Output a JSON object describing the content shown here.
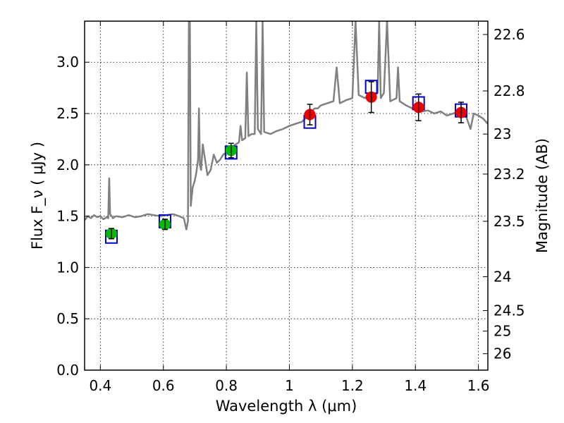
{
  "chart_data": {
    "type": "scatter",
    "xlabel": "Wavelength  λ (μm)",
    "ylabel": "Flux  F_ν  ( μJy )",
    "y2label": "Magnitude (AB)",
    "xlim": [
      0.35,
      1.63
    ],
    "ylim": [
      0.0,
      3.4
    ],
    "grid": true,
    "x_ticks": [
      {
        "value": 0.4,
        "label": "0.4"
      },
      {
        "value": 0.6,
        "label": "0.6"
      },
      {
        "value": 0.8,
        "label": "0.8"
      },
      {
        "value": 1.0,
        "label": "1"
      },
      {
        "value": 1.2,
        "label": "1.2"
      },
      {
        "value": 1.4,
        "label": "1.4"
      },
      {
        "value": 1.6,
        "label": "1.6"
      }
    ],
    "y_ticks": [
      {
        "value": 0.0,
        "label": "0.0"
      },
      {
        "value": 0.5,
        "label": "0.5"
      },
      {
        "value": 1.0,
        "label": "1.0"
      },
      {
        "value": 1.5,
        "label": "1.5"
      },
      {
        "value": 2.0,
        "label": "2.0"
      },
      {
        "value": 2.5,
        "label": "2.5"
      },
      {
        "value": 3.0,
        "label": "3.0"
      }
    ],
    "y2_ticks": [
      {
        "flux": 3.27,
        "label": "22.6"
      },
      {
        "flux": 2.72,
        "label": "22.8"
      },
      {
        "flux": 2.3,
        "label": "23"
      },
      {
        "flux": 1.91,
        "label": "23.2"
      },
      {
        "flux": 1.45,
        "label": "23.5"
      },
      {
        "flux": 0.91,
        "label": "24"
      },
      {
        "flux": 0.58,
        "label": "24.5"
      },
      {
        "flux": 0.38,
        "label": "25"
      },
      {
        "flux": 0.16,
        "label": "26"
      }
    ],
    "colors": {
      "spectrum": "#808080",
      "model_box": "#0000cc",
      "optical_point": "#00bb00",
      "nir_point": "#ee0000",
      "errorbar": "#000000"
    },
    "spectrum": [
      [
        0.35,
        1.46
      ],
      [
        0.36,
        1.5
      ],
      [
        0.37,
        1.48
      ],
      [
        0.38,
        1.51
      ],
      [
        0.39,
        1.49
      ],
      [
        0.4,
        1.5
      ],
      [
        0.41,
        1.47
      ],
      [
        0.42,
        1.49
      ],
      [
        0.425,
        1.48
      ],
      [
        0.428,
        1.87
      ],
      [
        0.431,
        1.52
      ],
      [
        0.44,
        1.48
      ],
      [
        0.45,
        1.5
      ],
      [
        0.47,
        1.49
      ],
      [
        0.49,
        1.51
      ],
      [
        0.51,
        1.49
      ],
      [
        0.53,
        1.5
      ],
      [
        0.55,
        1.52
      ],
      [
        0.57,
        1.51
      ],
      [
        0.59,
        1.5
      ],
      [
        0.61,
        1.51
      ],
      [
        0.63,
        1.52
      ],
      [
        0.65,
        1.5
      ],
      [
        0.665,
        1.48
      ],
      [
        0.673,
        1.37
      ],
      [
        0.678,
        1.45
      ],
      [
        0.681,
        3.4
      ],
      [
        0.684,
        3.4
      ],
      [
        0.687,
        1.6
      ],
      [
        0.693,
        1.78
      ],
      [
        0.7,
        1.85
      ],
      [
        0.705,
        1.93
      ],
      [
        0.71,
        2.05
      ],
      [
        0.713,
        2.55
      ],
      [
        0.716,
        2.0
      ],
      [
        0.72,
        1.95
      ],
      [
        0.725,
        2.2
      ],
      [
        0.73,
        2.1
      ],
      [
        0.74,
        1.9
      ],
      [
        0.75,
        1.95
      ],
      [
        0.76,
        2.1
      ],
      [
        0.77,
        2.02
      ],
      [
        0.78,
        2.05
      ],
      [
        0.79,
        2.1
      ],
      [
        0.8,
        2.12
      ],
      [
        0.81,
        2.15
      ],
      [
        0.82,
        2.18
      ],
      [
        0.83,
        2.2
      ],
      [
        0.84,
        2.22
      ],
      [
        0.845,
        2.38
      ],
      [
        0.85,
        2.24
      ],
      [
        0.86,
        2.26
      ],
      [
        0.865,
        2.9
      ],
      [
        0.87,
        2.28
      ],
      [
        0.88,
        2.3
      ],
      [
        0.89,
        2.3
      ],
      [
        0.895,
        3.4
      ],
      [
        0.9,
        2.35
      ],
      [
        0.91,
        2.3
      ],
      [
        0.915,
        3.4
      ],
      [
        0.92,
        2.32
      ],
      [
        0.94,
        2.3
      ],
      [
        0.96,
        2.33
      ],
      [
        0.98,
        2.35
      ],
      [
        1.0,
        2.38
      ],
      [
        1.02,
        2.4
      ],
      [
        1.04,
        2.42
      ],
      [
        1.05,
        2.45
      ],
      [
        1.06,
        2.48
      ],
      [
        1.07,
        2.52
      ],
      [
        1.08,
        2.55
      ],
      [
        1.09,
        2.55
      ],
      [
        1.1,
        2.58
      ],
      [
        1.12,
        2.6
      ],
      [
        1.14,
        2.62
      ],
      [
        1.15,
        2.95
      ],
      [
        1.16,
        2.6
      ],
      [
        1.18,
        2.63
      ],
      [
        1.2,
        2.65
      ],
      [
        1.21,
        3.4
      ],
      [
        1.22,
        2.68
      ],
      [
        1.24,
        2.65
      ],
      [
        1.25,
        2.68
      ],
      [
        1.26,
        2.7
      ],
      [
        1.27,
        2.68
      ],
      [
        1.28,
        2.7
      ],
      [
        1.285,
        3.4
      ],
      [
        1.29,
        2.65
      ],
      [
        1.3,
        2.7
      ],
      [
        1.31,
        3.4
      ],
      [
        1.32,
        2.62
      ],
      [
        1.34,
        2.65
      ],
      [
        1.345,
        2.95
      ],
      [
        1.35,
        2.62
      ],
      [
        1.37,
        2.58
      ],
      [
        1.39,
        2.55
      ],
      [
        1.4,
        2.55
      ],
      [
        1.42,
        2.52
      ],
      [
        1.44,
        2.53
      ],
      [
        1.46,
        2.5
      ],
      [
        1.48,
        2.52
      ],
      [
        1.5,
        2.48
      ],
      [
        1.52,
        2.5
      ],
      [
        1.54,
        2.52
      ],
      [
        1.56,
        2.48
      ],
      [
        1.575,
        2.35
      ],
      [
        1.585,
        2.5
      ],
      [
        1.6,
        2.48
      ],
      [
        1.615,
        2.45
      ],
      [
        1.63,
        2.4
      ]
    ],
    "model_photometry": [
      {
        "x": 0.435,
        "y": 1.3
      },
      {
        "x": 0.605,
        "y": 1.45
      },
      {
        "x": 0.815,
        "y": 2.12
      },
      {
        "x": 1.065,
        "y": 2.42
      },
      {
        "x": 1.26,
        "y": 2.76
      },
      {
        "x": 1.41,
        "y": 2.6
      },
      {
        "x": 1.545,
        "y": 2.53
      }
    ],
    "observed_optical": [
      {
        "x": 0.435,
        "y": 1.33,
        "err": 0.05
      },
      {
        "x": 0.605,
        "y": 1.42,
        "err": 0.05
      },
      {
        "x": 0.815,
        "y": 2.14,
        "err": 0.07
      }
    ],
    "observed_nir": [
      {
        "x": 1.065,
        "y": 2.49,
        "err": 0.1
      },
      {
        "x": 1.26,
        "y": 2.66,
        "err": 0.15
      },
      {
        "x": 1.41,
        "y": 2.56,
        "err": 0.13
      },
      {
        "x": 1.545,
        "y": 2.51,
        "err": 0.1
      }
    ]
  }
}
